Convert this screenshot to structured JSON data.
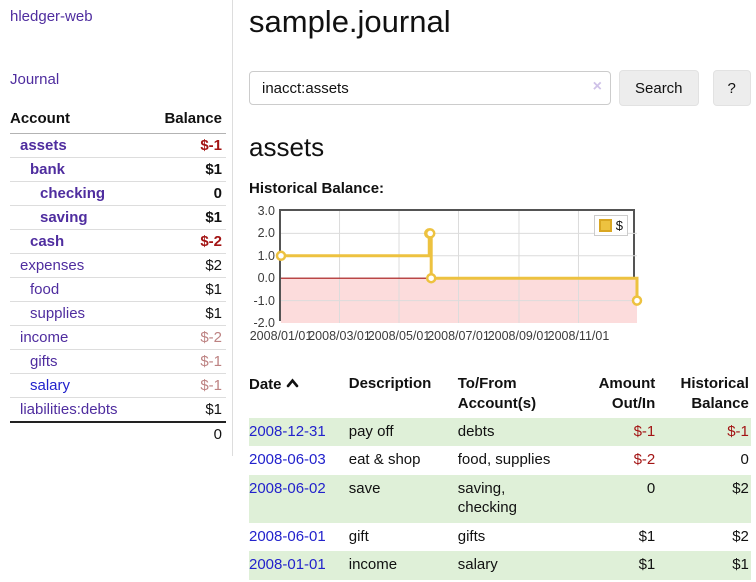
{
  "app": {
    "brand": "hledger-web",
    "nav_journal": "Journal"
  },
  "colors": {
    "link_purple": "#4f2d9f",
    "link_blue": "#2222cc",
    "negative": "#a31414",
    "negative_muted": "#bd8282",
    "row_stripe_green": "#dff0d8",
    "chart_line_gold": "#edc240",
    "chart_negative_region": "#fcdcdc",
    "chart_zero_line": "#a31414"
  },
  "sidebar": {
    "header": {
      "account": "Account",
      "balance": "Balance"
    },
    "accounts": [
      {
        "name": "assets",
        "depth": 1,
        "balance": "$-1",
        "bold": true,
        "balance_style": "neg-strong",
        "link": "purple"
      },
      {
        "name": "bank",
        "depth": 2,
        "balance": "$1",
        "bold": true,
        "balance_style": "",
        "link": "purple"
      },
      {
        "name": "checking",
        "depth": 3,
        "balance": "0",
        "bold": true,
        "balance_style": "",
        "link": "purple"
      },
      {
        "name": "saving",
        "depth": 3,
        "balance": "$1",
        "bold": true,
        "balance_style": "",
        "link": "purple"
      },
      {
        "name": "cash",
        "depth": 2,
        "balance": "$-2",
        "bold": true,
        "balance_style": "neg-strong",
        "link": "purple"
      },
      {
        "name": "expenses",
        "depth": 1,
        "balance": "$2",
        "bold": false,
        "balance_style": "",
        "link": "purple"
      },
      {
        "name": "food",
        "depth": 2,
        "balance": "$1",
        "bold": false,
        "balance_style": "",
        "link": "purple"
      },
      {
        "name": "supplies",
        "depth": 2,
        "balance": "$1",
        "bold": false,
        "balance_style": "",
        "link": "purple"
      },
      {
        "name": "income",
        "depth": 1,
        "balance": "$-2",
        "bold": false,
        "balance_style": "neg-muted",
        "link": "purple"
      },
      {
        "name": "gifts",
        "depth": 2,
        "balance": "$-1",
        "bold": false,
        "balance_style": "neg-muted",
        "link": "purple"
      },
      {
        "name": "salary",
        "depth": 2,
        "balance": "$-1",
        "bold": false,
        "balance_style": "neg-muted",
        "link": "blue"
      },
      {
        "name": "liabilities:debts",
        "depth": 1,
        "balance": "$1",
        "bold": false,
        "balance_style": "",
        "link": "purple"
      }
    ],
    "total": "0"
  },
  "header": {
    "title": "sample.journal"
  },
  "search": {
    "value": "inacct:assets",
    "clear_icon": "×",
    "button_label": "Search",
    "help_label": "?"
  },
  "account_page": {
    "title": "assets",
    "chart_label": "Historical Balance:"
  },
  "chart_data": {
    "type": "line",
    "title": "Historical Balance",
    "step": true,
    "x_domain_days": 365,
    "ylim": [
      -2,
      3
    ],
    "grid": true,
    "legend": {
      "label": "$",
      "position": "top-right"
    },
    "series": [
      {
        "name": "$",
        "color": "#edc240",
        "points": [
          {
            "date": "2008-01-01",
            "day": 0,
            "value": 1
          },
          {
            "date": "2008-06-01",
            "day": 152,
            "value": 2
          },
          {
            "date": "2008-06-02",
            "day": 153,
            "value": 2
          },
          {
            "date": "2008-06-03",
            "day": 154,
            "value": 0
          },
          {
            "date": "2008-12-31",
            "day": 365,
            "value": -1
          }
        ]
      }
    ],
    "x_ticks": [
      {
        "day": 0,
        "label": "2008/01/01"
      },
      {
        "day": 60,
        "label": "2008/03/01"
      },
      {
        "day": 121,
        "label": "2008/05/01"
      },
      {
        "day": 182,
        "label": "2008/07/01"
      },
      {
        "day": 244,
        "label": "2008/09/01"
      },
      {
        "day": 305,
        "label": "2008/11/01"
      }
    ],
    "y_ticks": [
      {
        "value": 3,
        "label": "3.0"
      },
      {
        "value": 2,
        "label": "2.0"
      },
      {
        "value": 1,
        "label": "1.0"
      },
      {
        "value": 0,
        "label": "0.0"
      },
      {
        "value": -1,
        "label": "-1.0"
      },
      {
        "value": -2,
        "label": "-2.0"
      }
    ]
  },
  "register": {
    "columns": [
      {
        "label": "Date",
        "sorted": "asc",
        "align": "left"
      },
      {
        "label": "Description",
        "align": "left"
      },
      {
        "label": "To/From Account(s)",
        "align": "left"
      },
      {
        "label": "Amount Out/In",
        "align": "right"
      },
      {
        "label": "Historical Balance",
        "align": "right"
      }
    ],
    "rows": [
      {
        "date": "2008-12-31",
        "description": "pay off",
        "accounts": "debts",
        "amount": "$-1",
        "amount_neg": true,
        "balance": "$-1",
        "balance_neg": true
      },
      {
        "date": "2008-06-03",
        "description": "eat & shop",
        "accounts": "food, supplies",
        "amount": "$-2",
        "amount_neg": true,
        "balance": "0",
        "balance_neg": false
      },
      {
        "date": "2008-06-02",
        "description": "save",
        "accounts": "saving, checking",
        "amount": "0",
        "amount_neg": false,
        "balance": "$2",
        "balance_neg": false
      },
      {
        "date": "2008-06-01",
        "description": "gift",
        "accounts": "gifts",
        "amount": "$1",
        "amount_neg": false,
        "balance": "$2",
        "balance_neg": false
      },
      {
        "date": "2008-01-01",
        "description": "income",
        "accounts": "salary",
        "amount": "$1",
        "amount_neg": false,
        "balance": "$1",
        "balance_neg": false
      }
    ]
  }
}
